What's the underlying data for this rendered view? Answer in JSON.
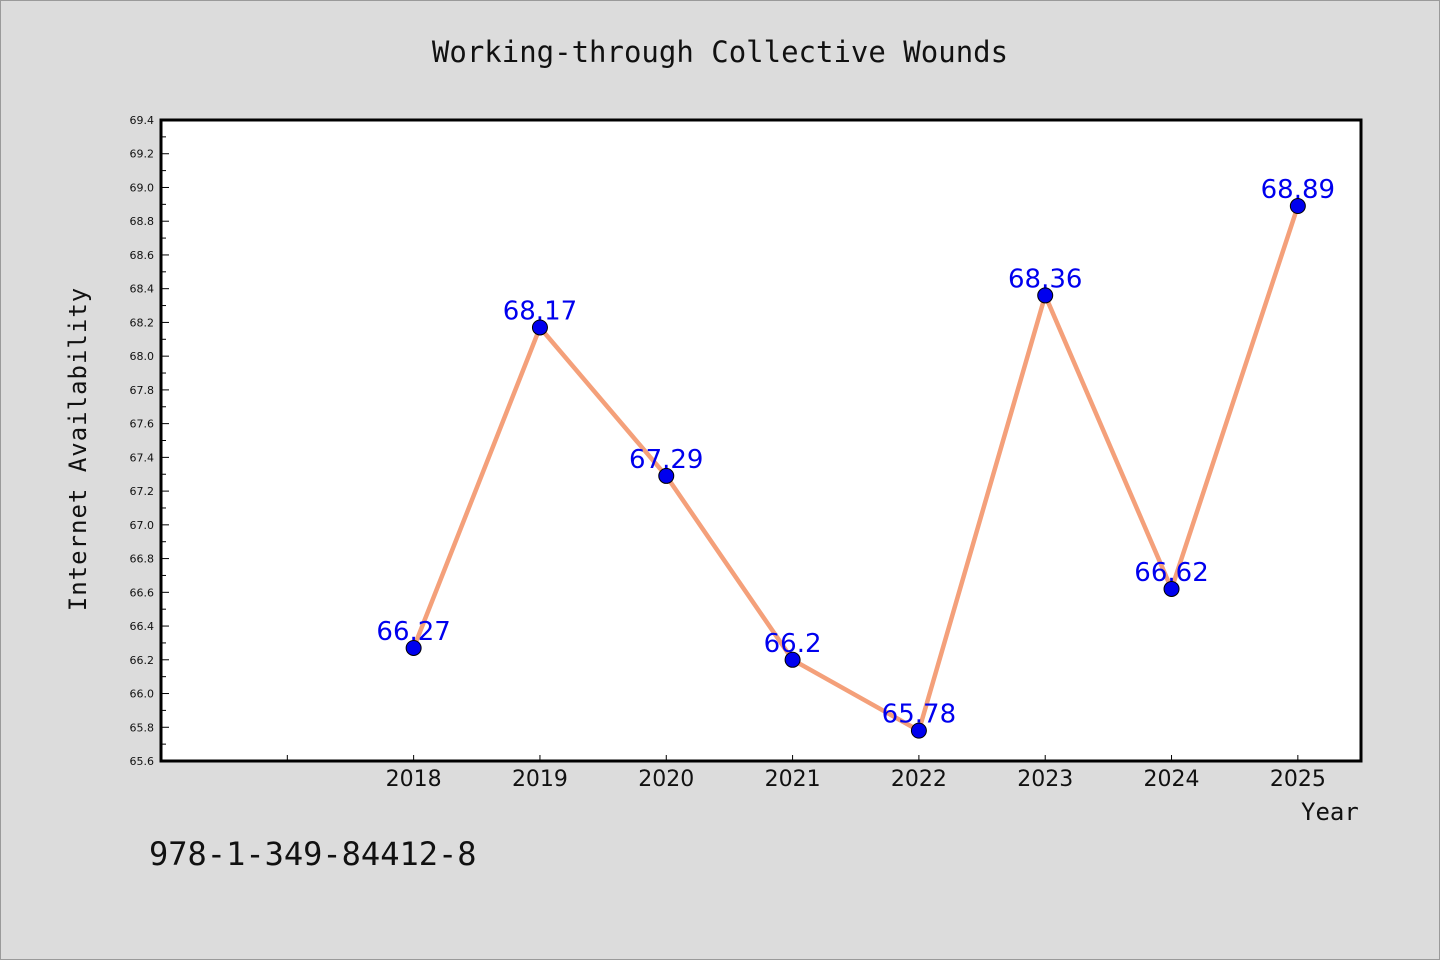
{
  "chart_data": {
    "type": "line",
    "title": "Working-through Collective Wounds",
    "xlabel": "Year",
    "ylabel": "Internet Availability",
    "categories": [
      "2018",
      "2019",
      "2020",
      "2021",
      "2022",
      "2023",
      "2024",
      "2025"
    ],
    "values": [
      66.27,
      68.17,
      67.29,
      66.2,
      65.78,
      68.36,
      66.62,
      68.89
    ],
    "data_labels": [
      "66.27",
      "68.17",
      "67.29",
      "66.2",
      "65.78",
      "68.36",
      "66.62",
      "68.89"
    ],
    "yticks": [
      "65.6",
      "65.8",
      "66.0",
      "66.2",
      "66.4",
      "66.6",
      "66.8",
      "67.0",
      "67.2",
      "67.4",
      "67.6",
      "67.8",
      "68.0",
      "68.2",
      "68.4",
      "68.6",
      "68.8",
      "69.0",
      "69.2",
      "69.4"
    ],
    "ylim": [
      65.6,
      69.4
    ],
    "x_extent": [
      2016,
      2025.5
    ],
    "grid": false,
    "legend": "none",
    "colors": {
      "line": "#f4a07a",
      "marker": "#0000ee",
      "label": "#0000ee",
      "frame": "#000000",
      "plot_bg": "#ffffff",
      "page_bg": "#dcdcdc"
    }
  },
  "footer": {
    "code": "978-1-349-84412-8"
  }
}
